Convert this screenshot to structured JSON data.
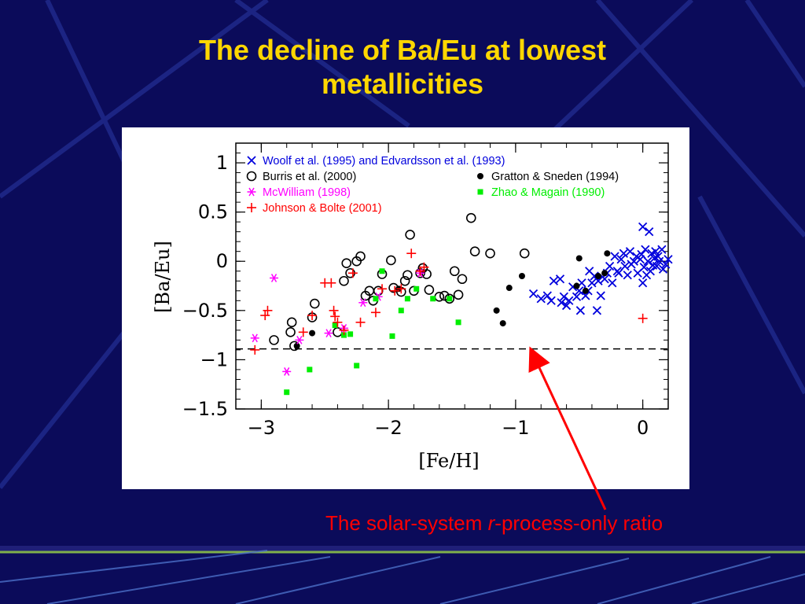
{
  "slide": {
    "title_line1": "The decline of Ba/Eu at lowest",
    "title_line2": "metallicities",
    "callout_prefix": "The solar-system ",
    "callout_italic": "r",
    "callout_suffix": "-process-only ratio"
  },
  "colors": {
    "background": "#0b0b5a",
    "title": "#ffd700",
    "callout": "#ff0000",
    "woolf": "#0000dd",
    "burris": "#000000",
    "gratton": "#000000",
    "mcwilliam": "#ff00ff",
    "zhao": "#00ee00",
    "johnson": "#ff0000"
  },
  "chart_data": {
    "type": "scatter",
    "xlabel": "[Fe/H]",
    "ylabel": "[Ba/Eu]",
    "xlim": [
      -3.2,
      0.2
    ],
    "ylim": [
      -1.5,
      1.2
    ],
    "xticks": [
      -3,
      -2,
      -1,
      0
    ],
    "xtick_labels": [
      "−3",
      "−2",
      "−1",
      "0"
    ],
    "yticks": [
      1,
      0.5,
      0,
      -0.5,
      -1,
      -1.5
    ],
    "ytick_labels": [
      "1",
      "0.5",
      "0",
      "−0.5",
      "−1",
      "−1.5"
    ],
    "grid": false,
    "legend_position": "top",
    "reference_line": {
      "y": -0.89,
      "style": "dashed"
    },
    "series": [
      {
        "name": "Woolf et al. (1995) and Edvardsson et al. (1993)",
        "marker": "x",
        "color": "#0000dd",
        "points": [
          [
            -0.86,
            -0.33
          ],
          [
            -0.8,
            -0.38
          ],
          [
            -0.75,
            -0.35
          ],
          [
            -0.72,
            -0.4
          ],
          [
            -0.7,
            -0.2
          ],
          [
            -0.65,
            -0.18
          ],
          [
            -0.64,
            -0.42
          ],
          [
            -0.62,
            -0.36
          ],
          [
            -0.6,
            -0.45
          ],
          [
            -0.58,
            -0.4
          ],
          [
            -0.55,
            -0.26
          ],
          [
            -0.52,
            -0.36
          ],
          [
            -0.5,
            -0.3
          ],
          [
            -0.49,
            -0.5
          ],
          [
            -0.48,
            -0.22
          ],
          [
            -0.45,
            -0.35
          ],
          [
            -0.43,
            -0.3
          ],
          [
            -0.42,
            -0.1
          ],
          [
            -0.4,
            -0.22
          ],
          [
            -0.38,
            -0.15
          ],
          [
            -0.36,
            -0.5
          ],
          [
            -0.35,
            -0.2
          ],
          [
            -0.33,
            -0.35
          ],
          [
            -0.3,
            -0.18
          ],
          [
            -0.28,
            -0.12
          ],
          [
            -0.26,
            -0.05
          ],
          [
            -0.24,
            -0.22
          ],
          [
            -0.22,
            0.05
          ],
          [
            -0.2,
            -0.1
          ],
          [
            -0.19,
            -0.12
          ],
          [
            -0.17,
            0.02
          ],
          [
            -0.15,
            0.08
          ],
          [
            -0.14,
            -0.05
          ],
          [
            -0.12,
            -0.14
          ],
          [
            -0.1,
            0.1
          ],
          [
            -0.09,
            -0.03
          ],
          [
            -0.07,
            0.0
          ],
          [
            -0.05,
            0.05
          ],
          [
            -0.04,
            -0.12
          ],
          [
            -0.02,
            0.02
          ],
          [
            -0.01,
            0.07
          ],
          [
            0.0,
            -0.22
          ],
          [
            0.0,
            0.35
          ],
          [
            0.01,
            -0.06
          ],
          [
            0.02,
            0.12
          ],
          [
            0.03,
            -0.14
          ],
          [
            0.04,
            0.0
          ],
          [
            0.05,
            0.3
          ],
          [
            0.06,
            -0.1
          ],
          [
            0.07,
            0.08
          ],
          [
            0.08,
            -0.04
          ],
          [
            0.09,
            0.03
          ],
          [
            0.1,
            0.1
          ],
          [
            0.11,
            -0.05
          ],
          [
            0.12,
            0.05
          ],
          [
            0.13,
            0.0
          ],
          [
            0.15,
            0.12
          ],
          [
            0.16,
            -0.08
          ],
          [
            0.18,
            -0.03
          ],
          [
            0.2,
            0.02
          ]
        ]
      },
      {
        "name": "Burris et al. (2000)",
        "marker": "circle",
        "color": "#000000",
        "points": [
          [
            -2.9,
            -0.8
          ],
          [
            -2.77,
            -0.72
          ],
          [
            -2.76,
            -0.62
          ],
          [
            -2.74,
            -0.86
          ],
          [
            -2.6,
            -0.57
          ],
          [
            -2.58,
            -0.43
          ],
          [
            -2.4,
            -0.72
          ],
          [
            -2.35,
            -0.2
          ],
          [
            -2.33,
            -0.02
          ],
          [
            -2.3,
            -0.12
          ],
          [
            -2.25,
            0.0
          ],
          [
            -2.22,
            0.05
          ],
          [
            -2.18,
            -0.35
          ],
          [
            -2.15,
            -0.3
          ],
          [
            -2.12,
            -0.4
          ],
          [
            -2.08,
            -0.3
          ],
          [
            -2.05,
            -0.13
          ],
          [
            -1.98,
            0.01
          ],
          [
            -1.96,
            -0.27
          ],
          [
            -1.9,
            -0.31
          ],
          [
            -1.87,
            -0.2
          ],
          [
            -1.85,
            -0.14
          ],
          [
            -1.83,
            0.27
          ],
          [
            -1.8,
            -0.3
          ],
          [
            -1.75,
            -0.12
          ],
          [
            -1.73,
            -0.07
          ],
          [
            -1.7,
            -0.13
          ],
          [
            -1.68,
            -0.29
          ],
          [
            -1.6,
            -0.36
          ],
          [
            -1.56,
            -0.35
          ],
          [
            -1.52,
            -0.38
          ],
          [
            -1.48,
            -0.1
          ],
          [
            -1.45,
            -0.34
          ],
          [
            -1.42,
            -0.18
          ],
          [
            -1.35,
            0.44
          ],
          [
            -1.32,
            0.1
          ],
          [
            -1.2,
            0.08
          ],
          [
            -0.93,
            0.08
          ]
        ]
      },
      {
        "name": "Gratton & Sneden (1994)",
        "marker": "dot",
        "color": "#000000",
        "points": [
          [
            -2.72,
            -0.86
          ],
          [
            -2.6,
            -0.73
          ],
          [
            -1.92,
            -0.28
          ],
          [
            -1.15,
            -0.5
          ],
          [
            -1.1,
            -0.63
          ],
          [
            -1.05,
            -0.27
          ],
          [
            -0.95,
            -0.15
          ],
          [
            -0.52,
            -0.25
          ],
          [
            -0.5,
            0.03
          ],
          [
            -0.45,
            -0.3
          ],
          [
            -0.35,
            -0.15
          ],
          [
            -0.3,
            -0.12
          ],
          [
            -0.28,
            0.08
          ]
        ]
      },
      {
        "name": "McWilliam (1998)",
        "marker": "asterisk",
        "color": "#ff00ff",
        "points": [
          [
            -3.05,
            -0.78
          ],
          [
            -2.9,
            -0.17
          ],
          [
            -2.8,
            -1.12
          ],
          [
            -2.7,
            -0.8
          ],
          [
            -2.47,
            -0.73
          ],
          [
            -2.35,
            -0.68
          ],
          [
            -2.2,
            -0.42
          ],
          [
            -2.08,
            -0.36
          ],
          [
            -1.75,
            -0.12
          ]
        ]
      },
      {
        "name": "Zhao & Magain (1990)",
        "marker": "square",
        "color": "#00ee00",
        "points": [
          [
            -2.8,
            -1.33
          ],
          [
            -2.62,
            -1.1
          ],
          [
            -2.42,
            -0.65
          ],
          [
            -2.35,
            -0.75
          ],
          [
            -2.3,
            -0.74
          ],
          [
            -2.25,
            -1.06
          ],
          [
            -2.1,
            -0.38
          ],
          [
            -2.05,
            -0.1
          ],
          [
            -1.97,
            -0.76
          ],
          [
            -1.9,
            -0.5
          ],
          [
            -1.85,
            -0.38
          ],
          [
            -1.78,
            -0.28
          ],
          [
            -1.65,
            -0.38
          ],
          [
            -1.52,
            -0.38
          ],
          [
            -1.45,
            -0.62
          ]
        ]
      },
      {
        "name": "Johnson & Bolte (2001)",
        "marker": "plus",
        "color": "#ff0000",
        "points": [
          [
            -3.05,
            -0.9
          ],
          [
            -2.97,
            -0.55
          ],
          [
            -2.95,
            -0.5
          ],
          [
            -2.67,
            -0.72
          ],
          [
            -2.6,
            -0.55
          ],
          [
            -2.5,
            -0.22
          ],
          [
            -2.45,
            -0.22
          ],
          [
            -2.43,
            -0.5
          ],
          [
            -2.42,
            -0.56
          ],
          [
            -2.4,
            -0.62
          ],
          [
            -2.35,
            -0.7
          ],
          [
            -2.28,
            -0.12
          ],
          [
            -2.22,
            -0.62
          ],
          [
            -2.1,
            -0.52
          ],
          [
            -2.05,
            -0.28
          ],
          [
            -1.95,
            -0.3
          ],
          [
            -1.9,
            -0.28
          ],
          [
            -1.82,
            0.08
          ],
          [
            -1.75,
            -0.1
          ],
          [
            -1.72,
            -0.06
          ],
          [
            0.0,
            -0.58
          ]
        ]
      }
    ]
  }
}
